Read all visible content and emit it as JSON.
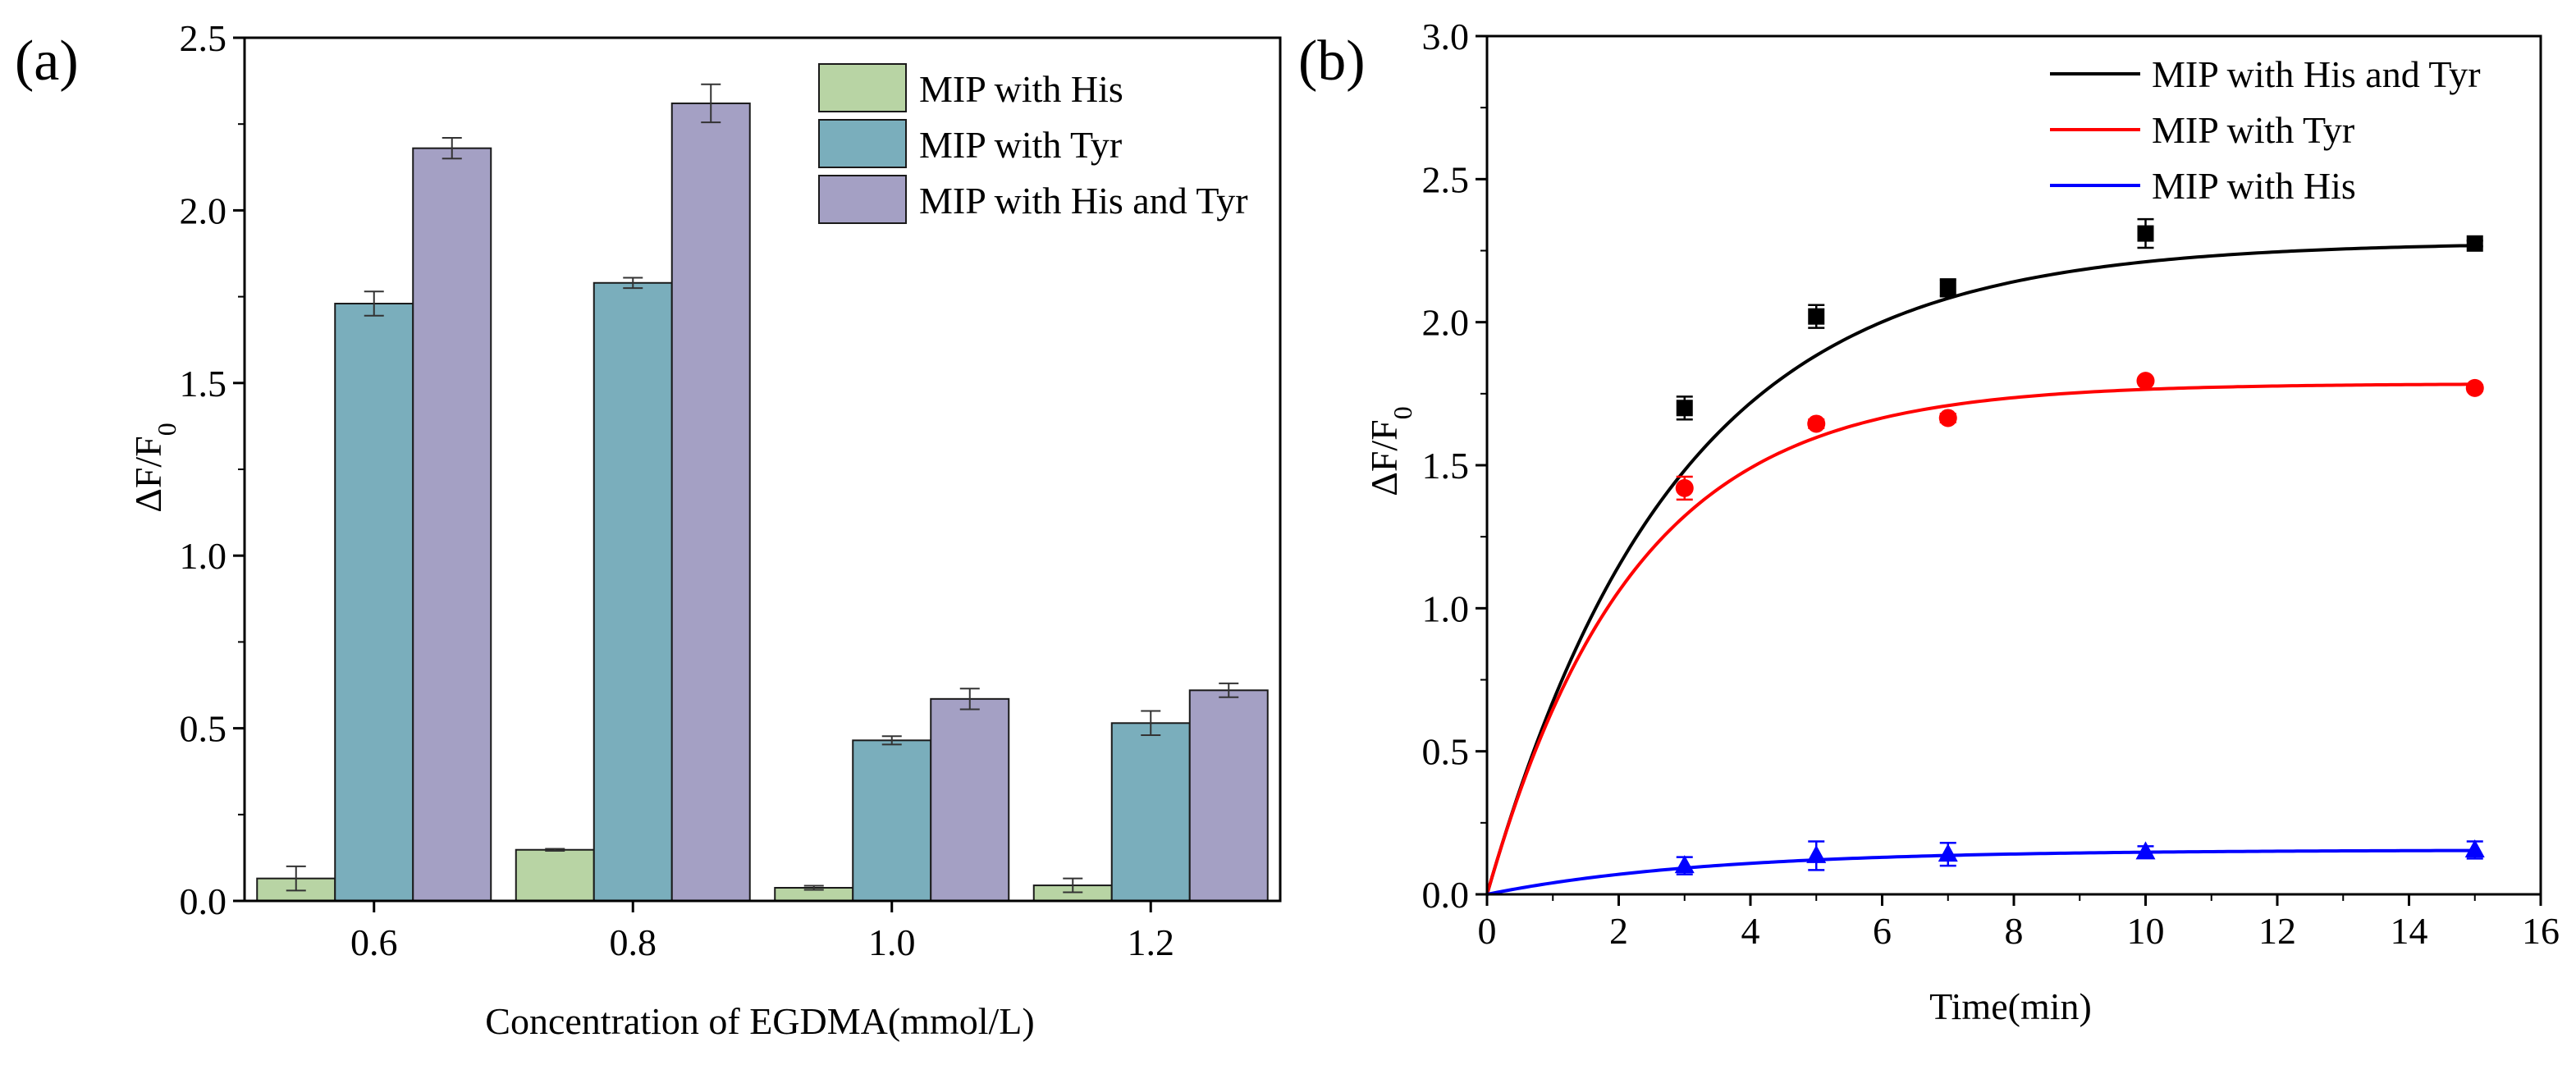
{
  "panel_labels": {
    "a": "(a)",
    "b": "(b)"
  },
  "chart_data": [
    {
      "type": "bar",
      "panel": "(a)",
      "title": "",
      "xlabel": "Concentration of EGDMA(mmol/L)",
      "ylabel": "ΔF/F0",
      "ylabel_main": "ΔF/F",
      "ylabel_sub": "0",
      "categories": [
        "0.6",
        "0.8",
        "1.0",
        "1.2"
      ],
      "ylim": [
        0,
        2.5
      ],
      "yticks": [
        "0.0",
        "0.5",
        "1.0",
        "1.5",
        "2.0",
        "2.5"
      ],
      "grid": false,
      "legend_position": "top-right",
      "series": [
        {
          "name": "MIP with His",
          "color": "#b8d4a4",
          "values": [
            0.065,
            0.148,
            0.038,
            0.045
          ],
          "errors": [
            0.035,
            0.003,
            0.006,
            0.02
          ]
        },
        {
          "name": "MIP with Tyr",
          "color": "#7aaebc",
          "values": [
            1.73,
            1.79,
            0.465,
            0.515
          ],
          "errors": [
            0.035,
            0.015,
            0.012,
            0.035
          ]
        },
        {
          "name": "MIP with His and Tyr",
          "color": "#a4a0c4",
          "values": [
            2.18,
            2.31,
            0.585,
            0.61
          ],
          "errors": [
            0.03,
            0.055,
            0.03,
            0.02
          ]
        }
      ]
    },
    {
      "type": "scatter",
      "panel": "(b)",
      "title": "",
      "xlabel": "Time(min)",
      "ylabel": "ΔF/F0",
      "ylabel_main": "ΔF/F",
      "ylabel_sub": "0",
      "xlim": [
        0,
        16
      ],
      "ylim": [
        0,
        3.0
      ],
      "xticks": [
        "0",
        "2",
        "4",
        "6",
        "8",
        "10",
        "12",
        "14",
        "16"
      ],
      "yticks": [
        "0.0",
        "0.5",
        "1.0",
        "1.5",
        "2.0",
        "2.5",
        "3.0"
      ],
      "grid": false,
      "legend_position": "top-right",
      "series": [
        {
          "name": "MIP with His and Tyr",
          "color": "#000000",
          "marker": "square",
          "x": [
            3,
            5,
            7,
            10,
            15
          ],
          "y": [
            1.7,
            2.02,
            2.12,
            2.31,
            2.275
          ],
          "errors": [
            0.04,
            0.04,
            0.03,
            0.05,
            0.01
          ],
          "fit": {
            "a": 2.28,
            "k": 0.35
          }
        },
        {
          "name": "MIP with Tyr",
          "color": "#ff0000",
          "marker": "circle",
          "x": [
            3,
            5,
            7,
            10,
            15
          ],
          "y": [
            1.42,
            1.645,
            1.665,
            1.795,
            1.77
          ],
          "errors": [
            0.04,
            0.015,
            0.015,
            0.01,
            0.01
          ],
          "fit": {
            "a": 1.785,
            "k": 0.45
          }
        },
        {
          "name": "MIP with His",
          "color": "#0000ff",
          "marker": "triangle",
          "x": [
            3,
            5,
            7,
            10,
            15
          ],
          "y": [
            0.1,
            0.135,
            0.14,
            0.148,
            0.155
          ],
          "errors": [
            0.03,
            0.05,
            0.04,
            0.02,
            0.03
          ],
          "fit": {
            "a": 0.155,
            "k": 0.3
          }
        }
      ]
    }
  ]
}
